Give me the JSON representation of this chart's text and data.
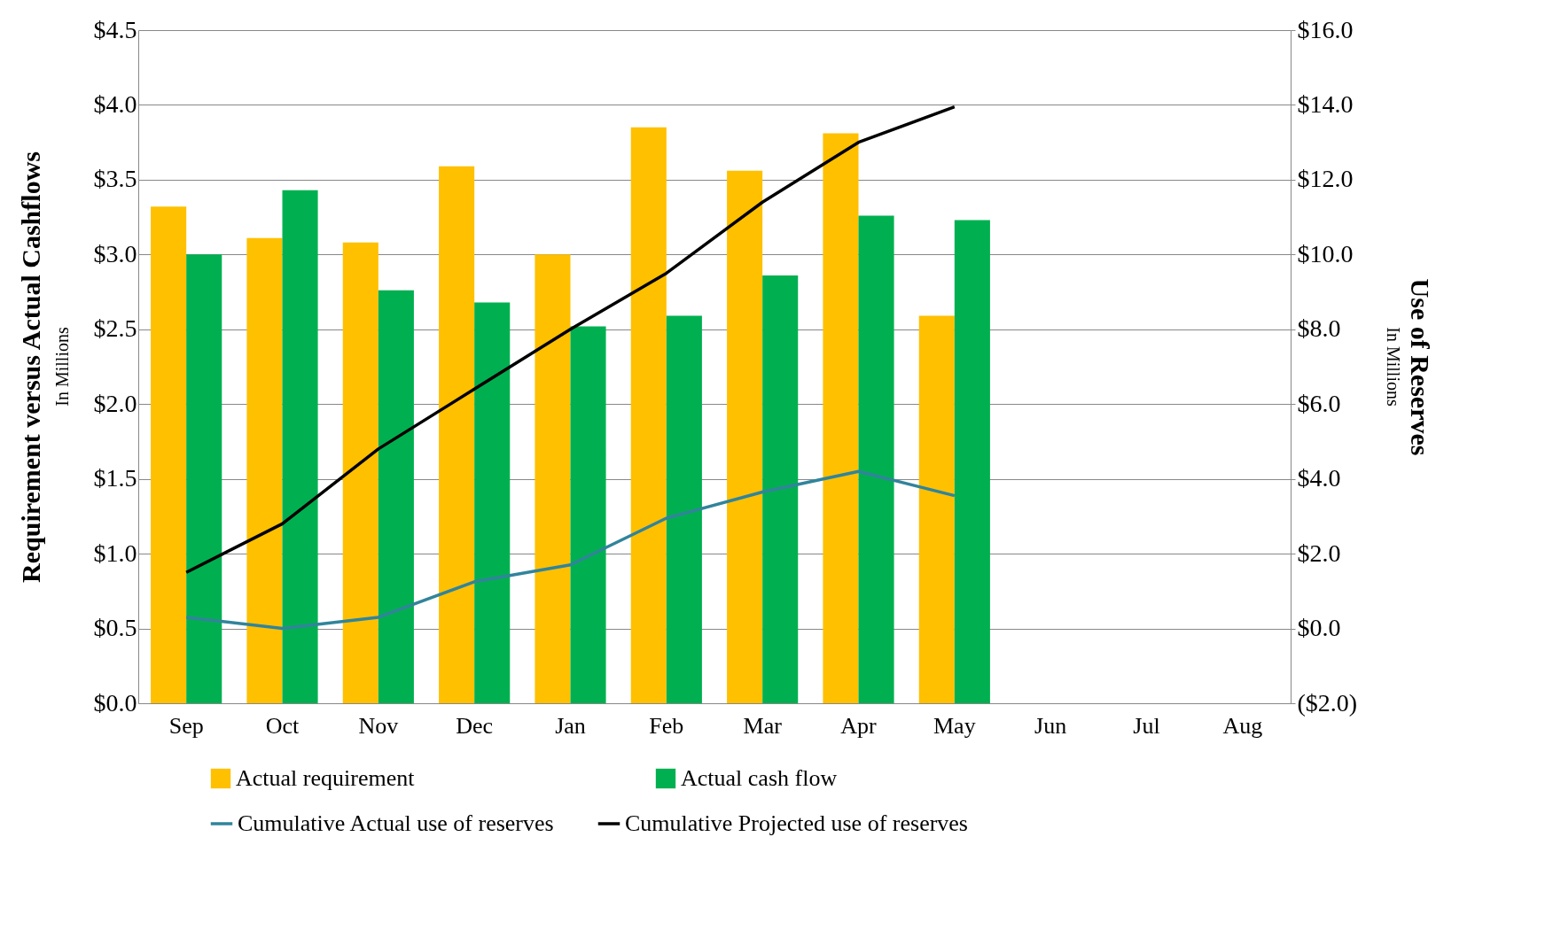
{
  "chart_data": {
    "type": "bar",
    "ylabel": "Requirement versus Actual Cashflows",
    "y2label": "Use of Reserves",
    "annotations": [
      "In Millions",
      "In Millions"
    ],
    "categories": [
      "Sep",
      "Oct",
      "Nov",
      "Dec",
      "Jan",
      "Feb",
      "Mar",
      "Apr",
      "May",
      "Jun",
      "Jul",
      "Aug"
    ],
    "series": [
      {
        "name": "Actual requirement",
        "color": "#ffc000",
        "values": [
          3.32,
          3.11,
          3.08,
          3.59,
          3.0,
          3.85,
          3.56,
          3.81,
          2.59,
          null,
          null,
          null
        ]
      },
      {
        "name": "Actual cash flow",
        "color": "#00b050",
        "values": [
          3.0,
          3.43,
          2.76,
          2.68,
          2.52,
          2.59,
          2.86,
          3.26,
          3.23,
          null,
          null,
          null
        ]
      },
      {
        "name": "Cumulative Actual use of reserves",
        "type": "line",
        "axis": "y2",
        "color": "#31849b",
        "values": [
          0.3,
          0.0,
          0.3,
          1.25,
          1.7,
          2.95,
          3.65,
          4.2,
          3.55,
          null,
          null,
          null
        ]
      },
      {
        "name": "Cumulative Projected use of reserves",
        "type": "line",
        "axis": "y2",
        "color": "#000000",
        "values": [
          1.5,
          2.8,
          4.8,
          6.4,
          8.0,
          9.5,
          11.4,
          13.0,
          13.95,
          null,
          null,
          null
        ]
      }
    ],
    "ylim": [
      0,
      4.5
    ],
    "yticks": [
      {
        "value": 0,
        "label": "$0.0"
      },
      {
        "value": 0.5,
        "label": "$0.5"
      },
      {
        "value": 1,
        "label": "$1.0"
      },
      {
        "value": 1.5,
        "label": "$1.5"
      },
      {
        "value": 2,
        "label": "$2.0"
      },
      {
        "value": 2.5,
        "label": "$2.5"
      },
      {
        "value": 3,
        "label": "$3.0"
      },
      {
        "value": 3.5,
        "label": "$3.5"
      },
      {
        "value": 4,
        "label": "$4.0"
      },
      {
        "value": 4.5,
        "label": "$4.5"
      }
    ],
    "y2lim": [
      -2,
      16
    ],
    "y2ticks": [
      {
        "value": -2,
        "label": "($2.0)"
      },
      {
        "value": 0,
        "label": "$0.0"
      },
      {
        "value": 2,
        "label": "$2.0"
      },
      {
        "value": 4,
        "label": "$4.0"
      },
      {
        "value": 6,
        "label": "$6.0"
      },
      {
        "value": 8,
        "label": "$8.0"
      },
      {
        "value": 10,
        "label": "$10.0"
      },
      {
        "value": 12,
        "label": "$12.0"
      },
      {
        "value": 14,
        "label": "$14.0"
      },
      {
        "value": 16,
        "label": "$16.0"
      }
    ],
    "grid": "y",
    "legend": "bottom",
    "line_style": "solid",
    "marker": "none"
  }
}
